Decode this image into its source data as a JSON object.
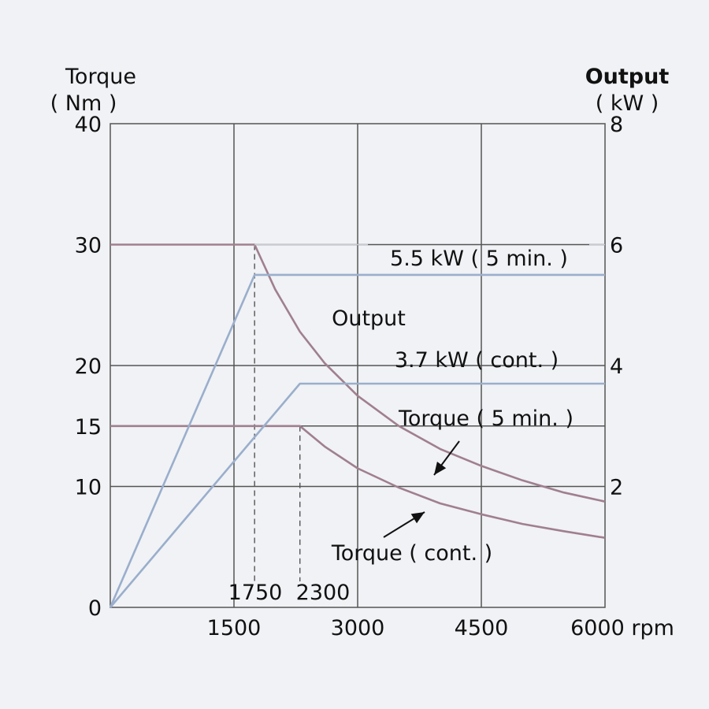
{
  "chart_data": {
    "type": "line",
    "x_axis": {
      "range": [
        0,
        6000
      ],
      "ticks": [
        1500,
        3000,
        4500
      ],
      "tick_labels": [
        "1500",
        "3000",
        "4500"
      ],
      "end_label": "6000 rpm",
      "marked_values": [
        1750,
        2300
      ],
      "marked_labels": [
        "1750",
        "2300"
      ]
    },
    "y_axis_left": {
      "label_line1": "Torque",
      "label_line2": "( Nm )",
      "range": [
        0,
        40
      ],
      "ticks": [
        0,
        10,
        15,
        20,
        30,
        40
      ],
      "tick_labels": [
        "0",
        "10",
        "15",
        "20",
        "30",
        "40"
      ]
    },
    "y_axis_right": {
      "label_line1": "Output",
      "label_line2": "( kW )",
      "range": [
        0,
        8
      ],
      "ticks": [
        2,
        4,
        6,
        8
      ],
      "tick_labels": [
        "2",
        "4",
        "6",
        "8"
      ]
    },
    "grid": true,
    "series": [
      {
        "name": "Torque ( 5 min. )",
        "axis": "left",
        "color": "#a07f8e",
        "points": [
          [
            0,
            30
          ],
          [
            1750,
            30
          ],
          [
            2000,
            26.3
          ],
          [
            2300,
            22.8
          ],
          [
            2600,
            20.2
          ],
          [
            3000,
            17.5
          ],
          [
            3500,
            15
          ],
          [
            4000,
            13.1
          ],
          [
            4500,
            11.7
          ],
          [
            5000,
            10.5
          ],
          [
            5500,
            9.5
          ],
          [
            6000,
            8.75
          ]
        ]
      },
      {
        "name": "Torque ( cont. )",
        "axis": "left",
        "color": "#a07f8e",
        "points": [
          [
            0,
            15
          ],
          [
            2300,
            15
          ],
          [
            2600,
            13.3
          ],
          [
            3000,
            11.5
          ],
          [
            3500,
            9.9
          ],
          [
            4000,
            8.6
          ],
          [
            4500,
            7.7
          ],
          [
            5000,
            6.9
          ],
          [
            5500,
            6.3
          ],
          [
            6000,
            5.75
          ]
        ]
      },
      {
        "name": "5.5 kW ( 5 min. )",
        "axis": "right",
        "color": "#9aaecc",
        "points": [
          [
            0,
            0
          ],
          [
            1750,
            5.5
          ],
          [
            6000,
            5.5
          ]
        ]
      },
      {
        "name": "3.7 kW ( cont. )",
        "axis": "right",
        "color": "#9aaecc",
        "points": [
          [
            0,
            0
          ],
          [
            2300,
            3.7
          ],
          [
            6000,
            3.7
          ]
        ]
      }
    ],
    "annotations": {
      "output_label": "Output",
      "label_5min_output": "5.5 kW ( 5 min. )",
      "label_cont_output": "3.7 kW ( cont. )",
      "label_5min_torque": "Torque ( 5 min. )",
      "label_cont_torque": "Torque ( cont. )"
    },
    "colors": {
      "grid": "#555555",
      "axis": "#555555",
      "background": "#f0f2f5"
    }
  }
}
